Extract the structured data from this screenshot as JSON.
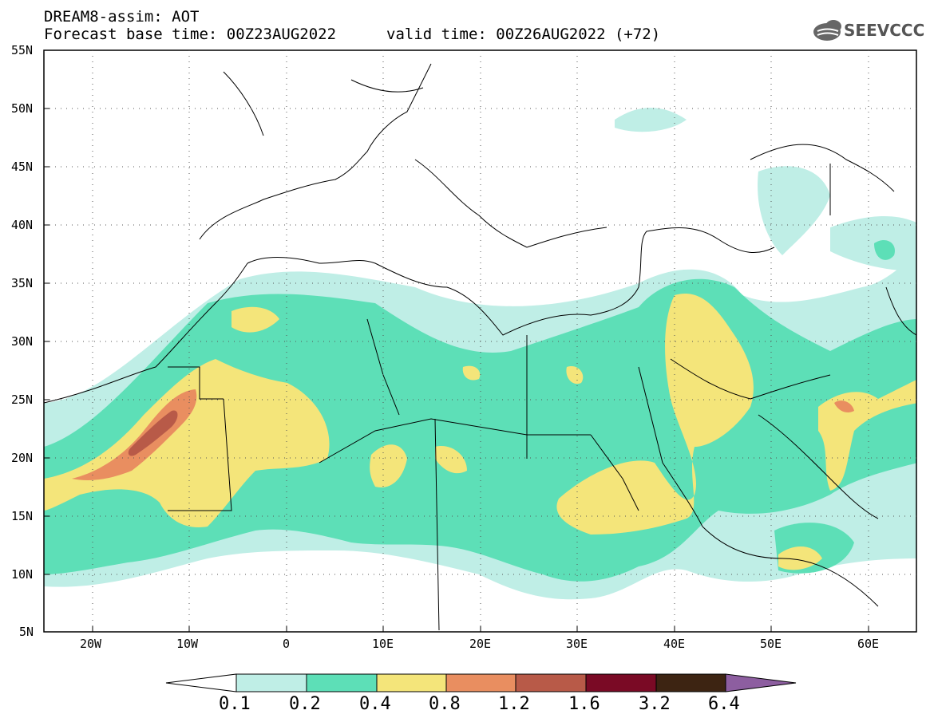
{
  "header": {
    "line1": "DREAM8-assim: AOT",
    "line2": "Forecast base time: 00Z23AUG2022",
    "line3": "valid time: 00Z26AUG2022 (+72)"
  },
  "logo": {
    "text": "SEEVCCC",
    "icon": "cloud-icon"
  },
  "axes": {
    "lat_labels": [
      "55N",
      "50N",
      "45N",
      "40N",
      "35N",
      "30N",
      "25N",
      "20N",
      "15N",
      "10N",
      "5N"
    ],
    "lon_labels": [
      "20W",
      "10W",
      "0",
      "10E",
      "20E",
      "30E",
      "40E",
      "50E",
      "60E"
    ]
  },
  "colorbar": {
    "labels": [
      "0.1",
      "0.2",
      "0.4",
      "0.8",
      "1.2",
      "1.6",
      "3.2",
      "6.4"
    ],
    "colors": [
      "#ffffff",
      "#bfeee6",
      "#5ddfb7",
      "#f4e57a",
      "#e98e60",
      "#b85a48",
      "#7a0a25",
      "#3d2412",
      "#8d5ea0"
    ]
  },
  "colors": {
    "c01": "#bfeee6",
    "c02": "#5ddfb7",
    "c04": "#f4e57a",
    "c08": "#e98e60",
    "c12": "#b85a48"
  }
}
